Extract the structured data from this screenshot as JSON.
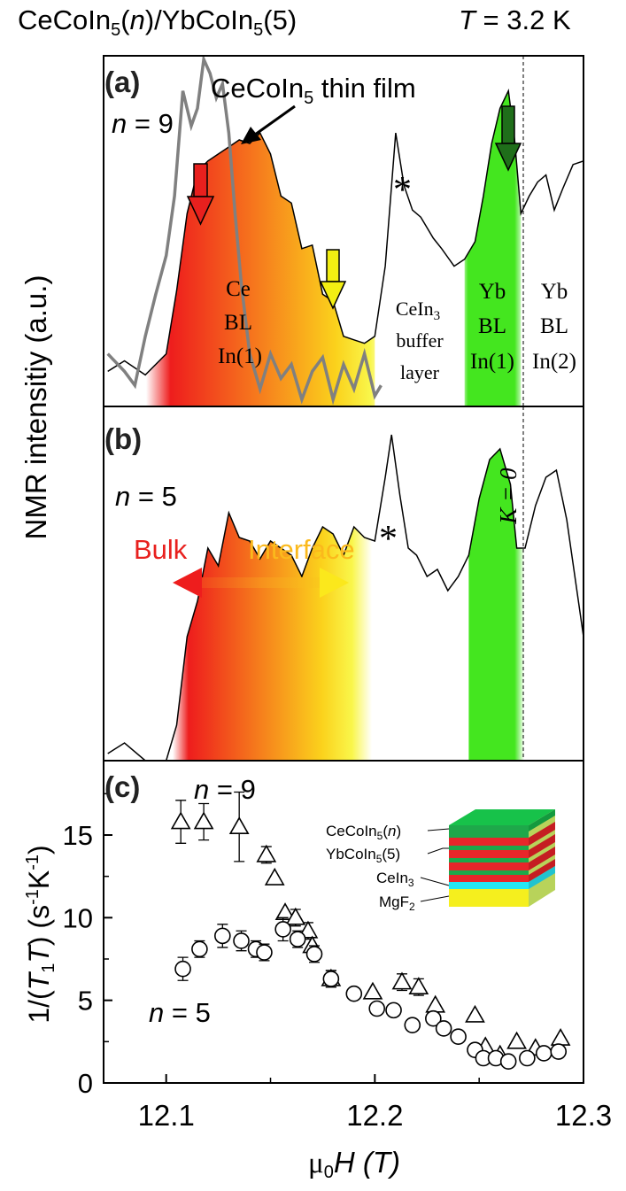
{
  "header": {
    "title_parts": [
      "CeCoIn",
      "5",
      "(",
      "n",
      ")/YbCoIn",
      "5",
      "(5)"
    ],
    "temp_T": "T",
    "temp_value": " = 3.2 K"
  },
  "ylabel_top": "NMR intensitiy (a.u.)",
  "panel_a": {
    "label": "(a)",
    "n_label": "n = 9",
    "thin_film_parts": [
      "CeCoIn",
      "5",
      " thin film"
    ],
    "ce_bl_lines": [
      "Ce",
      "BL",
      "In(1)"
    ],
    "cein3_parts": [
      "CeIn",
      "3"
    ],
    "buffer_lines": [
      "buffer",
      "layer"
    ],
    "yb_bl1_lines": [
      "Yb",
      "BL",
      "In(1)"
    ],
    "yb_bl2_lines": [
      "Yb",
      "BL",
      "In(2)"
    ],
    "asterisk": "*",
    "spectrum_x": [
      12.072,
      12.08,
      12.09,
      12.1,
      12.105,
      12.11,
      12.115,
      12.12,
      12.125,
      12.13,
      12.135,
      12.14,
      12.145,
      12.15,
      12.155,
      12.16,
      12.165,
      12.17,
      12.175,
      12.18,
      12.185,
      12.19,
      12.195,
      12.2,
      12.205,
      12.21,
      12.214,
      12.218,
      12.222,
      12.228,
      12.232,
      12.238,
      12.243,
      12.248,
      12.252,
      12.256,
      12.26,
      12.264,
      12.267,
      12.27,
      12.274,
      12.278,
      12.282,
      12.286,
      12.29,
      12.295,
      12.3
    ],
    "spectrum_y": [
      0.1,
      0.13,
      0.09,
      0.15,
      0.33,
      0.55,
      0.67,
      0.7,
      0.72,
      0.74,
      0.76,
      0.75,
      0.78,
      0.72,
      0.6,
      0.58,
      0.45,
      0.46,
      0.32,
      0.3,
      0.2,
      0.19,
      0.18,
      0.2,
      0.4,
      0.78,
      0.63,
      0.56,
      0.54,
      0.48,
      0.45,
      0.4,
      0.42,
      0.47,
      0.6,
      0.75,
      0.85,
      0.9,
      0.76,
      0.55,
      0.6,
      0.64,
      0.66,
      0.56,
      0.62,
      0.69,
      0.7
    ],
    "thinfilm_x": [
      12.072,
      12.08,
      12.085,
      12.09,
      12.095,
      12.1,
      12.104,
      12.108,
      12.112,
      12.115,
      12.118,
      12.121,
      12.124,
      12.127,
      12.13,
      12.133,
      12.136,
      12.14,
      12.145,
      12.15,
      12.155,
      12.16,
      12.165,
      12.17,
      12.175,
      12.18,
      12.185,
      12.19,
      12.195,
      12.2,
      12.203
    ],
    "thinfilm_y": [
      0.15,
      0.1,
      0.06,
      0.2,
      0.32,
      0.43,
      0.6,
      0.9,
      0.8,
      0.85,
      0.99,
      0.95,
      0.88,
      0.92,
      0.78,
      0.55,
      0.35,
      0.15,
      0.05,
      0.15,
      0.08,
      0.12,
      0.02,
      0.1,
      0.14,
      0.02,
      0.12,
      0.05,
      0.15,
      0.03,
      0.06
    ]
  },
  "panel_b": {
    "label": "(b)",
    "n_label": "n = 5",
    "bulk_label": "Bulk",
    "interface_label": "Interface",
    "k0_label": "K = 0",
    "asterisk": "*",
    "spectrum_x": [
      12.072,
      12.08,
      12.09,
      12.1,
      12.105,
      12.11,
      12.115,
      12.12,
      12.125,
      12.13,
      12.135,
      12.14,
      12.145,
      12.15,
      12.155,
      12.16,
      12.165,
      12.17,
      12.175,
      12.18,
      12.185,
      12.19,
      12.195,
      12.2,
      12.205,
      12.208,
      12.212,
      12.216,
      12.22,
      12.225,
      12.23,
      12.235,
      12.24,
      12.245,
      12.25,
      12.255,
      12.26,
      12.265,
      12.268,
      12.272,
      12.277,
      12.282,
      12.287,
      12.292,
      12.3
    ],
    "spectrum_y": [
      0.02,
      0.05,
      0.0,
      0.0,
      0.1,
      0.35,
      0.45,
      0.6,
      0.55,
      0.7,
      0.63,
      0.62,
      0.57,
      0.62,
      0.6,
      0.58,
      0.52,
      0.6,
      0.66,
      0.64,
      0.58,
      0.66,
      0.63,
      0.62,
      0.8,
      0.92,
      0.75,
      0.6,
      0.58,
      0.52,
      0.54,
      0.48,
      0.52,
      0.58,
      0.74,
      0.85,
      0.88,
      0.78,
      0.6,
      0.6,
      0.72,
      0.8,
      0.82,
      0.68,
      0.35
    ]
  },
  "panel_c": {
    "label": "(c)",
    "n9_label": "n = 9",
    "n5_label": "n = 5",
    "inset_labels": {
      "cecoin5_parts": [
        "CeCoIn",
        "5",
        "(",
        "n",
        ")"
      ],
      "ybcoin5_parts": [
        "YbCoIn",
        "5",
        "(5)"
      ],
      "cein3_parts": [
        "CeIn",
        "3"
      ],
      "mgf2_parts": [
        "MgF",
        "2"
      ]
    },
    "ylabel_parts": [
      "1/(",
      "T",
      "1",
      "T",
      ") (s",
      "-1",
      "K",
      "-1",
      ")"
    ]
  },
  "xlabel_parts": [
    "μ",
    "0",
    "H",
    " (T)"
  ],
  "colors": {
    "red_arrow": "#e8201e",
    "yellow_arrow": "#f2ee12",
    "green_arrow": "#1f6e1a",
    "green_fill": "#44e61f",
    "thin_film": "#808080",
    "inset_green": "#1ea84a",
    "inset_red": "#e8262a",
    "inset_cyan": "#26e6f2",
    "inset_yellow": "#f5ef1e"
  },
  "chart_data": [
    {
      "type": "line",
      "title": "(a)",
      "xlim": [
        12.07,
        12.3
      ],
      "ylabel": "NMR intensitiy (a.u.)",
      "series": [
        {
          "name": "CeCoIn5(9)/YbCoIn5(5) spectrum",
          "note": "see panel_a.spectrum_x/y"
        },
        {
          "name": "CeCoIn5 thin film",
          "note": "see panel_a.thinfilm_x/y"
        }
      ],
      "annotations": [
        "Ce BL In(1)",
        "CeIn3 buffer layer",
        "Yb BL In(1)",
        "Yb BL In(2)",
        "*"
      ]
    },
    {
      "type": "line",
      "title": "(b)",
      "xlim": [
        12.07,
        12.3
      ],
      "annotations": [
        "Bulk",
        "Interface",
        "K = 0",
        "*"
      ]
    },
    {
      "type": "scatter",
      "title": "(c)",
      "xlabel": "μ0H (T)",
      "ylabel": "1/(T1T) (s-1K-1)",
      "xlim": [
        12.07,
        12.3
      ],
      "ylim": [
        0,
        19.5
      ],
      "x_ticks": [
        12.1,
        12.2,
        12.3
      ],
      "x_tick_labels": [
        "12.1",
        "12.2",
        "12.3"
      ],
      "y_ticks": [
        0,
        5,
        10,
        15
      ],
      "y_tick_labels": [
        "0",
        "5",
        "10",
        "15"
      ],
      "series": [
        {
          "name": "n = 9",
          "marker": "triangle",
          "x": [
            12.107,
            12.118,
            12.135,
            12.148,
            12.152,
            12.157,
            12.162,
            12.168,
            12.17,
            12.179,
            12.199,
            12.213,
            12.221,
            12.229,
            12.248,
            12.253,
            12.26,
            12.268,
            12.277,
            12.289
          ],
          "y": [
            15.8,
            15.8,
            15.5,
            13.8,
            12.4,
            10.3,
            10.0,
            9.2,
            8.3,
            6.3,
            5.5,
            6.1,
            5.8,
            4.7,
            4.1,
            2.2,
            1.7,
            2.5,
            2.1,
            2.7
          ],
          "err": [
            1.3,
            1.1,
            2.1,
            0.5,
            0.4,
            0.4,
            0.5,
            0.5,
            0.4,
            0.5,
            0.4,
            0.5,
            0.5,
            0.4,
            0.4,
            0.4,
            0.4,
            0.4,
            0.4,
            0.4
          ]
        },
        {
          "name": "n = 5",
          "marker": "circle",
          "x": [
            12.108,
            12.116,
            12.127,
            12.136,
            12.143,
            12.147,
            12.156,
            12.163,
            12.171,
            12.179,
            12.19,
            12.201,
            12.209,
            12.218,
            12.228,
            12.233,
            12.24,
            12.248,
            12.252,
            12.258,
            12.264,
            12.273,
            12.281,
            12.288
          ],
          "y": [
            6.9,
            8.1,
            8.9,
            8.6,
            8.1,
            7.9,
            9.3,
            8.7,
            7.8,
            6.3,
            5.4,
            4.5,
            4.4,
            3.5,
            3.9,
            3.3,
            2.8,
            2.0,
            1.5,
            1.5,
            1.3,
            1.5,
            1.8,
            1.9
          ],
          "err": [
            0.7,
            0.5,
            0.7,
            0.6,
            0.5,
            0.5,
            0.7,
            0.5,
            0.5,
            0.5,
            0.3,
            0.3,
            0.3,
            0.3,
            0.3,
            0.3,
            0.3,
            0.3,
            0.3,
            0.3,
            0.3,
            0.3,
            0.3,
            0.3
          ]
        }
      ]
    }
  ]
}
